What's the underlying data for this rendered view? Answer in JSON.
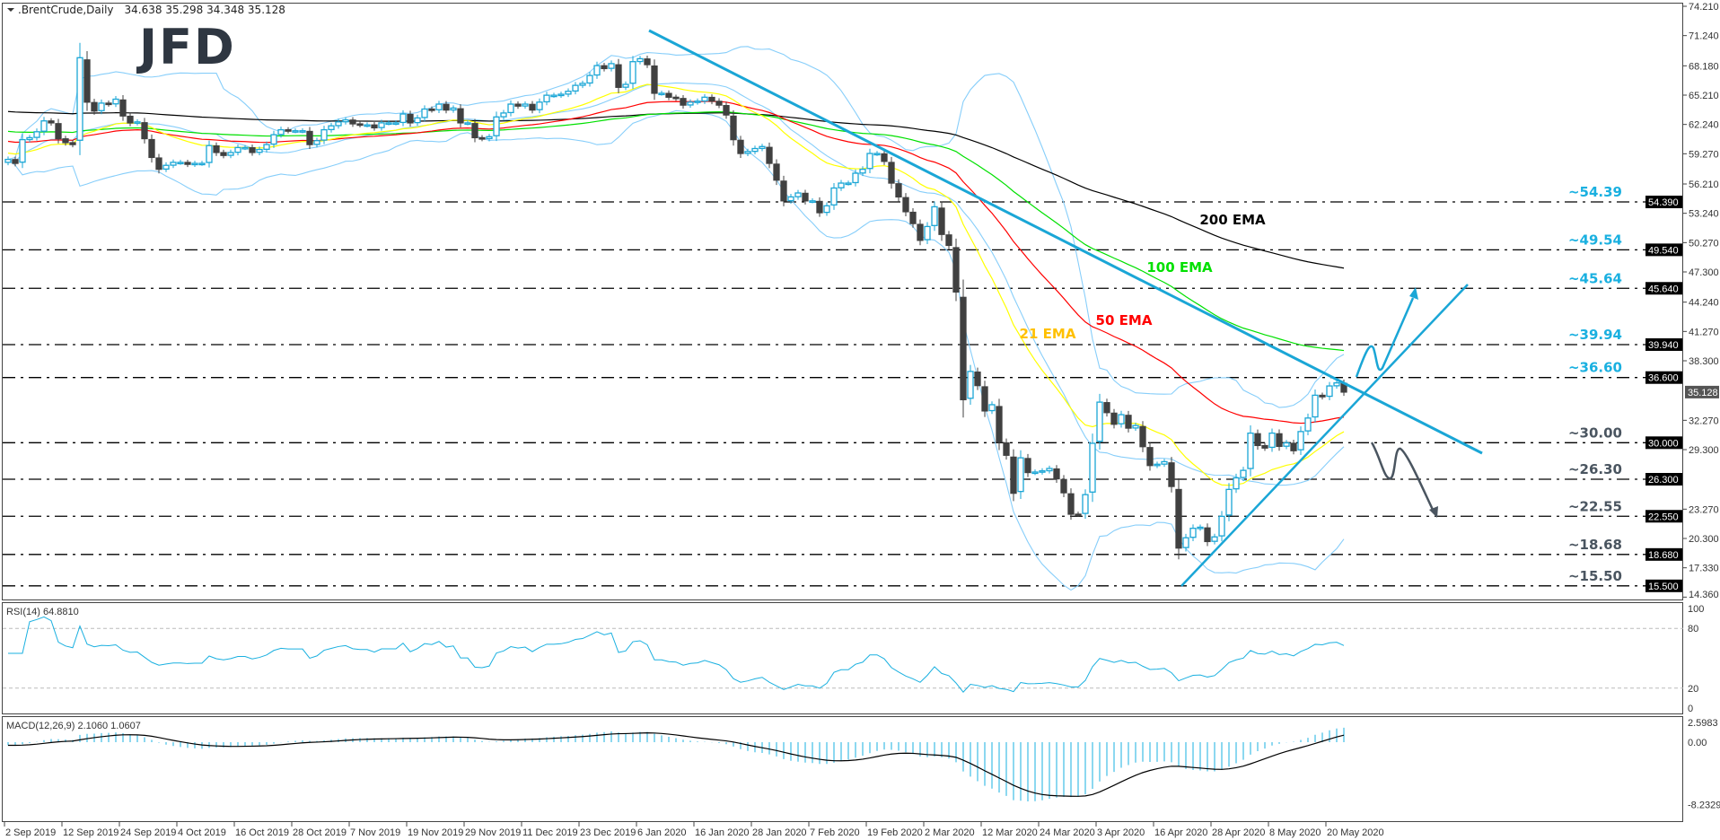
{
  "header": {
    "symbol": ".BrentCrude,Daily",
    "ohlc": "34.638 35.298 34.348 35.128",
    "menu_icon": "triangle-down-icon"
  },
  "logo": {
    "text": "JFD"
  },
  "colors": {
    "up_candle": "#1aa6d6",
    "down_candle": "#404040",
    "bollinger": "#87cefa",
    "ema21": "#ffff00",
    "ema21_label": "#ffc000",
    "ema50": "#ff0000",
    "ema100": "#00e000",
    "ema200": "#000000",
    "trendline": "#1aa6d6",
    "bullish_level": "#1ab0e0",
    "bearish_level": "#4a5560",
    "rsi": "#1ab0e0",
    "macd_hist": "#1ab0e0",
    "macd_signal": "#000000"
  },
  "chart_data": {
    "type": "candlestick",
    "title": ".BrentCrude,Daily",
    "price_axis_ticks": [
      "74.210",
      "71.240",
      "68.180",
      "65.210",
      "62.240",
      "59.270",
      "56.210",
      "53.240",
      "50.270",
      "47.300",
      "44.240",
      "41.270",
      "38.300",
      "32.270",
      "29.300",
      "23.270",
      "20.300",
      "17.330",
      "14.360"
    ],
    "ylim": [
      14.36,
      74.21
    ],
    "current_price": "35.128",
    "date_ticks": [
      "2 Sep 2019",
      "12 Sep 2019",
      "24 Sep 2019",
      "4 Oct 2019",
      "16 Oct 2019",
      "28 Oct 2019",
      "7 Nov 2019",
      "19 Nov 2019",
      "29 Nov 2019",
      "11 Dec 2019",
      "23 Dec 2019",
      "6 Jan 2020",
      "16 Jan 2020",
      "28 Jan 2020",
      "7 Feb 2020",
      "19 Feb 2020",
      "2 Mar 2020",
      "12 Mar 2020",
      "24 Mar 2020",
      "3 Apr 2020",
      "16 Apr 2020",
      "28 Apr 2020",
      "8 May 2020",
      "20 May 2020"
    ],
    "bars_per_date_tick": 8,
    "close": [
      58.7,
      58.3,
      60.7,
      60.9,
      61.5,
      62.6,
      62.4,
      60.8,
      60.4,
      60.2,
      69.0,
      64.5,
      63.6,
      64.4,
      64.3,
      64.8,
      63.1,
      62.4,
      62.5,
      60.8,
      58.9,
      57.7,
      58.1,
      58.4,
      58.4,
      58.2,
      58.3,
      58.3,
      60.1,
      59.4,
      59.1,
      59.4,
      59.9,
      59.9,
      59.4,
      59.7,
      60.2,
      61.2,
      61.7,
      61.6,
      61.6,
      61.6,
      60.2,
      60.6,
      61.7,
      62.1,
      62.5,
      62.7,
      62.3,
      62.2,
      62.2,
      61.9,
      62.4,
      62.4,
      62.4,
      63.3,
      62.4,
      62.9,
      63.8,
      63.7,
      64.3,
      63.7,
      63.9,
      62.4,
      62.4,
      60.9,
      60.8,
      61.0,
      63.0,
      63.4,
      64.3,
      64.1,
      64.3,
      63.7,
      64.5,
      65.2,
      65.2,
      65.3,
      65.6,
      66.2,
      66.4,
      67.2,
      68.2,
      67.9,
      68.4,
      66.0,
      66.3,
      68.6,
      68.9,
      68.3,
      65.4,
      65.4,
      65.0,
      64.9,
      64.2,
      64.5,
      64.6,
      65.0,
      64.6,
      64.2,
      63.2,
      60.7,
      59.3,
      59.5,
      59.8,
      60.0,
      58.3,
      56.6,
      54.5,
      54.9,
      55.3,
      54.5,
      54.5,
      53.3,
      54.0,
      55.8,
      56.3,
      56.3,
      57.3,
      57.7,
      59.3,
      59.3,
      58.5,
      56.3,
      54.9,
      53.4,
      52.2,
      50.5,
      51.9,
      53.9,
      51.1,
      49.99,
      45.27,
      34.36,
      37.22,
      35.79,
      33.22,
      33.85,
      30.05,
      28.73,
      24.88,
      28.47,
      26.98,
      27.03,
      27.15,
      27.39,
      26.34,
      24.93,
      22.76,
      22.74,
      24.74,
      29.94,
      34.11,
      33.05,
      31.87,
      32.84,
      31.48,
      31.74,
      29.6,
      27.69,
      27.82,
      28.08,
      25.57,
      19.33,
      20.37,
      21.33,
      21.44,
      19.99,
      20.46,
      22.54,
      25.27,
      26.44,
      27.2,
      30.97,
      29.72,
      29.46,
      30.97,
      29.63,
      29.98,
      29.19,
      31.13,
      32.5,
      34.81,
      34.65,
      35.75,
      36.06,
      35.128
    ],
    "levels": [
      {
        "value": 54.39,
        "label": "~54.39",
        "tag": "54.390",
        "kind": "bullish"
      },
      {
        "value": 49.54,
        "label": "~49.54",
        "tag": "49.540",
        "kind": "bullish"
      },
      {
        "value": 45.64,
        "label": "~45.64",
        "tag": "45.640",
        "kind": "bullish"
      },
      {
        "value": 39.94,
        "label": "~39.94",
        "tag": "39.940",
        "kind": "bullish"
      },
      {
        "value": 36.6,
        "label": "~36.60",
        "tag": "36.600",
        "kind": "bullish"
      },
      {
        "value": 30.0,
        "label": "~30.00",
        "tag": "30.000",
        "kind": "bearish"
      },
      {
        "value": 26.3,
        "label": "~26.30",
        "tag": "26.300",
        "kind": "bearish"
      },
      {
        "value": 22.55,
        "label": "~22.55",
        "tag": "22.550",
        "kind": "bearish"
      },
      {
        "value": 18.68,
        "label": "~18.68",
        "tag": "18.680",
        "kind": "bearish"
      },
      {
        "value": 15.5,
        "label": "~15.50",
        "tag": "15.500",
        "kind": "bearish"
      }
    ],
    "ema_labels": {
      "ema21": "21 EMA",
      "ema50": "50 EMA",
      "ema100": "100 EMA",
      "ema200": "200 EMA"
    },
    "rsi": {
      "title": "RSI(14) 64.8810",
      "ticks": [
        "100",
        "80",
        "20",
        "0"
      ],
      "levels": [
        80,
        20
      ],
      "ylim": [
        0,
        100
      ]
    },
    "macd": {
      "title": "MACD(12,26,9) 2.1060 1.0607",
      "ticks": [
        "2.5983",
        "0.00",
        "-8.2329"
      ],
      "ylim": [
        -8.2329,
        2.5983
      ]
    }
  }
}
